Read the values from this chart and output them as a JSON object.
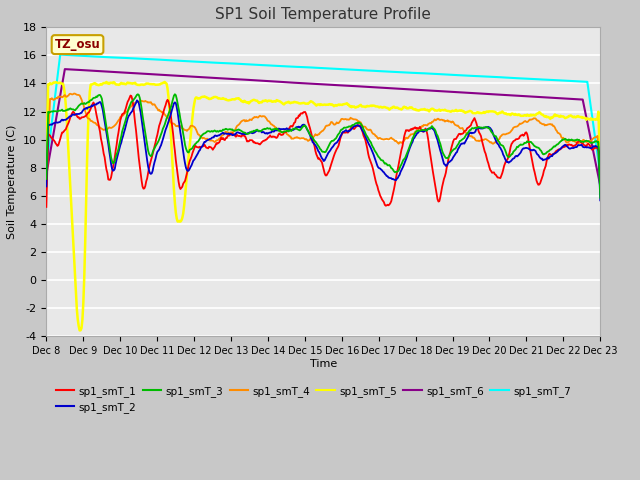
{
  "title": "SP1 Soil Temperature Profile",
  "xlabel": "Time",
  "ylabel": "Soil Temperature (C)",
  "ylim": [
    -4,
    18
  ],
  "fig_bg_color": "#c8c8c8",
  "plot_bg_color": "#e8e8e8",
  "grid_color": "#ffffff",
  "annotation_text": "TZ_osu",
  "annotation_color": "#8b0000",
  "annotation_bg": "#ffffd0",
  "annotation_border": "#c8a000",
  "series_colors": {
    "sp1_smT_1": "#ff0000",
    "sp1_smT_2": "#0000cc",
    "sp1_smT_3": "#00bb00",
    "sp1_smT_4": "#ff8c00",
    "sp1_smT_5": "#ffff00",
    "sp1_smT_6": "#880088",
    "sp1_smT_7": "#00ffff"
  },
  "x_ticks": [
    "Dec 8",
    "Dec 9",
    "Dec 10",
    "Dec 11",
    "Dec 12",
    "Dec 13",
    "Dec 14",
    "Dec 15",
    "Dec 16",
    "Dec 17",
    "Dec 18",
    "Dec 19",
    "Dec 20",
    "Dec 21",
    "Dec 22",
    "Dec 23"
  ],
  "y_ticks": [
    -4,
    -2,
    0,
    2,
    4,
    6,
    8,
    10,
    12,
    14,
    16,
    18
  ]
}
